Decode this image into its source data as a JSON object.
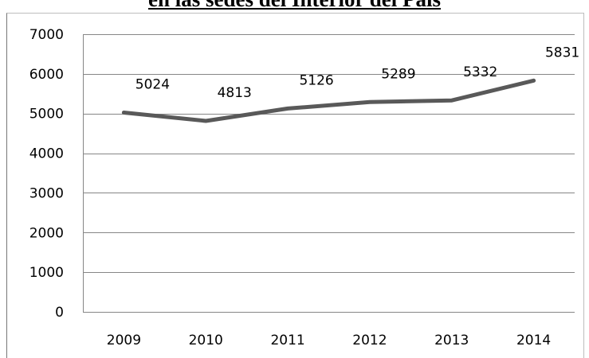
{
  "chart_data": {
    "type": "line",
    "title": "en las sedes del Interior del País",
    "xlabel": "",
    "ylabel": "",
    "categories": [
      "2009",
      "2010",
      "2011",
      "2012",
      "2013",
      "2014"
    ],
    "series": [
      {
        "values": [
          5024,
          4813,
          5126,
          5289,
          5332,
          5831
        ],
        "color": "#595959"
      }
    ],
    "ylim": [
      0,
      7000
    ],
    "yticks": [
      0,
      1000,
      2000,
      3000,
      4000,
      5000,
      6000,
      7000
    ],
    "grid": true,
    "legend": "none",
    "data_labels": [
      "5024",
      "4813",
      "5126",
      "5289",
      "5332",
      "5831"
    ]
  }
}
